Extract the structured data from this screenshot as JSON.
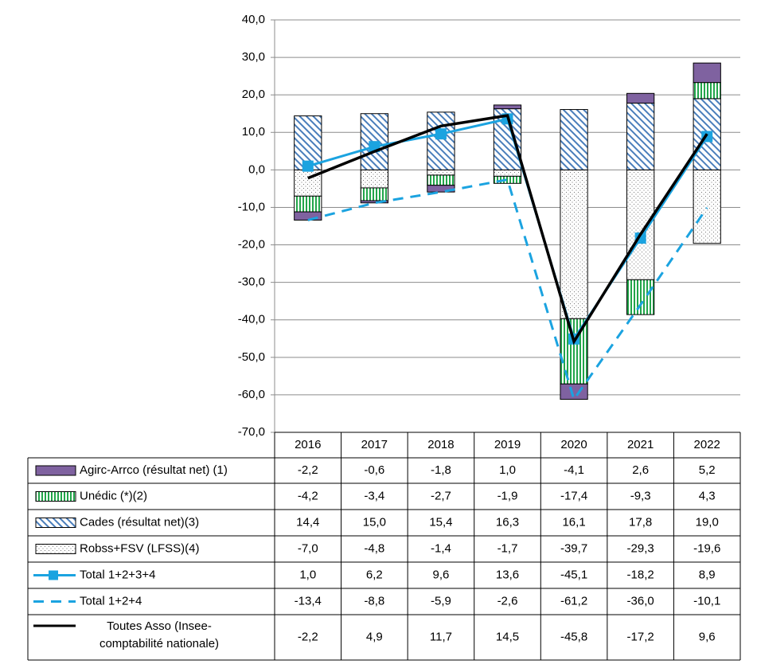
{
  "chart_data": {
    "type": "bar",
    "stacked": true,
    "grid": true,
    "categories": [
      "2016",
      "2017",
      "2018",
      "2019",
      "2020",
      "2021",
      "2022"
    ],
    "ylim": [
      -70,
      40
    ],
    "yticks": [
      {
        "value": -70,
        "label": "-70,0"
      },
      {
        "value": -60,
        "label": "-60,0"
      },
      {
        "value": -50,
        "label": "-50,0"
      },
      {
        "value": -40,
        "label": "-40,0"
      },
      {
        "value": -30,
        "label": "-30,0"
      },
      {
        "value": -20,
        "label": "-20,0"
      },
      {
        "value": -10,
        "label": "-10,0"
      },
      {
        "value": 0,
        "label": "0,0"
      },
      {
        "value": 10,
        "label": "10,0"
      },
      {
        "value": 20,
        "label": "20,0"
      },
      {
        "value": 30,
        "label": "30,0"
      },
      {
        "value": 40,
        "label": "40,0"
      }
    ],
    "series": [
      {
        "name": "Agirc-Arrco (résultat net) (1)",
        "kind": "bar",
        "fill": "solid",
        "color": "#7f62a0",
        "values": [
          -2.2,
          -0.6,
          -1.8,
          1.0,
          -4.1,
          2.6,
          5.2
        ],
        "value_labels": [
          "-2,2",
          "-0,6",
          "-1,8",
          "1,0",
          "-4,1",
          "2,6",
          "5,2"
        ]
      },
      {
        "name": "Unédic (*)(2)",
        "kind": "bar",
        "fill": "vertical-stripes",
        "color": "#22a54a",
        "values": [
          -4.2,
          -3.4,
          -2.7,
          -1.9,
          -17.4,
          -9.3,
          4.3
        ],
        "value_labels": [
          "-4,2",
          "-3,4",
          "-2,7",
          "-1,9",
          "-17,4",
          "-9,3",
          "4,3"
        ]
      },
      {
        "name": "Cades (résultat net)(3)",
        "kind": "bar",
        "fill": "diagonal-hatch",
        "color": "#4a7ebb",
        "values": [
          14.4,
          15.0,
          15.4,
          16.3,
          16.1,
          17.8,
          19.0
        ],
        "value_labels": [
          "14,4",
          "15,0",
          "15,4",
          "16,3",
          "16,1",
          "17,8",
          "19,0"
        ]
      },
      {
        "name": "Robss+FSV (LFSS)(4)",
        "kind": "bar",
        "fill": "dots",
        "color": "#707070",
        "values": [
          -7.0,
          -4.8,
          -1.4,
          -1.7,
          -39.7,
          -29.3,
          -19.6
        ],
        "value_labels": [
          "-7,0",
          "-4,8",
          "-1,4",
          "-1,7",
          "-39,7",
          "-29,3",
          "-19,6"
        ]
      },
      {
        "name": "Total 1+2+3+4",
        "kind": "line",
        "line_style": "solid",
        "marker": "square",
        "color": "#1ba3e0",
        "values": [
          1.0,
          6.2,
          9.6,
          13.6,
          -45.1,
          -18.2,
          8.9
        ],
        "value_labels": [
          "1,0",
          "6,2",
          "9,6",
          "13,6",
          "-45,1",
          "-18,2",
          "8,9"
        ]
      },
      {
        "name": "Total 1+2+4",
        "kind": "line",
        "line_style": "dashed",
        "marker": "none",
        "color": "#1ba3e0",
        "values": [
          -13.4,
          -8.8,
          -5.9,
          -2.6,
          -61.2,
          -36.0,
          -10.1
        ],
        "value_labels": [
          "-13,4",
          "-8,8",
          "-5,9",
          "-2,6",
          "-61,2",
          "-36,0",
          "-10,1"
        ]
      },
      {
        "name": "Toutes Asso (Insee-comptabilité nationale)",
        "kind": "line",
        "line_style": "solid",
        "marker": "none",
        "color": "#000000",
        "values": [
          -2.2,
          4.9,
          11.7,
          14.5,
          -45.8,
          -17.2,
          9.6
        ],
        "value_labels": [
          "-2,2",
          "4,9",
          "11,7",
          "14,5",
          "-45,8",
          "-17,2",
          "9,6"
        ]
      }
    ]
  }
}
